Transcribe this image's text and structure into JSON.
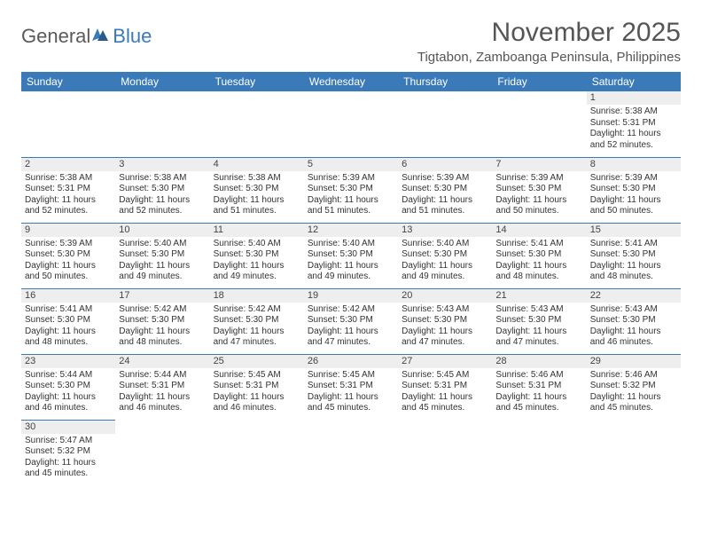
{
  "logo": {
    "text_general": "General",
    "text_blue": "Blue"
  },
  "title": "November 2025",
  "location": "Tigtabon, Zamboanga Peninsula, Philippines",
  "colors": {
    "header_bg": "#3a7ab8",
    "header_text": "#ffffff",
    "daynum_bg": "#eeeeee",
    "cell_border": "#3a7ab8",
    "body_text": "#333333",
    "title_text": "#555555"
  },
  "day_headers": [
    "Sunday",
    "Monday",
    "Tuesday",
    "Wednesday",
    "Thursday",
    "Friday",
    "Saturday"
  ],
  "weeks": [
    [
      null,
      null,
      null,
      null,
      null,
      null,
      {
        "n": "1",
        "sunrise": "Sunrise: 5:38 AM",
        "sunset": "Sunset: 5:31 PM",
        "daylight1": "Daylight: 11 hours",
        "daylight2": "and 52 minutes."
      }
    ],
    [
      {
        "n": "2",
        "sunrise": "Sunrise: 5:38 AM",
        "sunset": "Sunset: 5:31 PM",
        "daylight1": "Daylight: 11 hours",
        "daylight2": "and 52 minutes."
      },
      {
        "n": "3",
        "sunrise": "Sunrise: 5:38 AM",
        "sunset": "Sunset: 5:30 PM",
        "daylight1": "Daylight: 11 hours",
        "daylight2": "and 52 minutes."
      },
      {
        "n": "4",
        "sunrise": "Sunrise: 5:38 AM",
        "sunset": "Sunset: 5:30 PM",
        "daylight1": "Daylight: 11 hours",
        "daylight2": "and 51 minutes."
      },
      {
        "n": "5",
        "sunrise": "Sunrise: 5:39 AM",
        "sunset": "Sunset: 5:30 PM",
        "daylight1": "Daylight: 11 hours",
        "daylight2": "and 51 minutes."
      },
      {
        "n": "6",
        "sunrise": "Sunrise: 5:39 AM",
        "sunset": "Sunset: 5:30 PM",
        "daylight1": "Daylight: 11 hours",
        "daylight2": "and 51 minutes."
      },
      {
        "n": "7",
        "sunrise": "Sunrise: 5:39 AM",
        "sunset": "Sunset: 5:30 PM",
        "daylight1": "Daylight: 11 hours",
        "daylight2": "and 50 minutes."
      },
      {
        "n": "8",
        "sunrise": "Sunrise: 5:39 AM",
        "sunset": "Sunset: 5:30 PM",
        "daylight1": "Daylight: 11 hours",
        "daylight2": "and 50 minutes."
      }
    ],
    [
      {
        "n": "9",
        "sunrise": "Sunrise: 5:39 AM",
        "sunset": "Sunset: 5:30 PM",
        "daylight1": "Daylight: 11 hours",
        "daylight2": "and 50 minutes."
      },
      {
        "n": "10",
        "sunrise": "Sunrise: 5:40 AM",
        "sunset": "Sunset: 5:30 PM",
        "daylight1": "Daylight: 11 hours",
        "daylight2": "and 49 minutes."
      },
      {
        "n": "11",
        "sunrise": "Sunrise: 5:40 AM",
        "sunset": "Sunset: 5:30 PM",
        "daylight1": "Daylight: 11 hours",
        "daylight2": "and 49 minutes."
      },
      {
        "n": "12",
        "sunrise": "Sunrise: 5:40 AM",
        "sunset": "Sunset: 5:30 PM",
        "daylight1": "Daylight: 11 hours",
        "daylight2": "and 49 minutes."
      },
      {
        "n": "13",
        "sunrise": "Sunrise: 5:40 AM",
        "sunset": "Sunset: 5:30 PM",
        "daylight1": "Daylight: 11 hours",
        "daylight2": "and 49 minutes."
      },
      {
        "n": "14",
        "sunrise": "Sunrise: 5:41 AM",
        "sunset": "Sunset: 5:30 PM",
        "daylight1": "Daylight: 11 hours",
        "daylight2": "and 48 minutes."
      },
      {
        "n": "15",
        "sunrise": "Sunrise: 5:41 AM",
        "sunset": "Sunset: 5:30 PM",
        "daylight1": "Daylight: 11 hours",
        "daylight2": "and 48 minutes."
      }
    ],
    [
      {
        "n": "16",
        "sunrise": "Sunrise: 5:41 AM",
        "sunset": "Sunset: 5:30 PM",
        "daylight1": "Daylight: 11 hours",
        "daylight2": "and 48 minutes."
      },
      {
        "n": "17",
        "sunrise": "Sunrise: 5:42 AM",
        "sunset": "Sunset: 5:30 PM",
        "daylight1": "Daylight: 11 hours",
        "daylight2": "and 48 minutes."
      },
      {
        "n": "18",
        "sunrise": "Sunrise: 5:42 AM",
        "sunset": "Sunset: 5:30 PM",
        "daylight1": "Daylight: 11 hours",
        "daylight2": "and 47 minutes."
      },
      {
        "n": "19",
        "sunrise": "Sunrise: 5:42 AM",
        "sunset": "Sunset: 5:30 PM",
        "daylight1": "Daylight: 11 hours",
        "daylight2": "and 47 minutes."
      },
      {
        "n": "20",
        "sunrise": "Sunrise: 5:43 AM",
        "sunset": "Sunset: 5:30 PM",
        "daylight1": "Daylight: 11 hours",
        "daylight2": "and 47 minutes."
      },
      {
        "n": "21",
        "sunrise": "Sunrise: 5:43 AM",
        "sunset": "Sunset: 5:30 PM",
        "daylight1": "Daylight: 11 hours",
        "daylight2": "and 47 minutes."
      },
      {
        "n": "22",
        "sunrise": "Sunrise: 5:43 AM",
        "sunset": "Sunset: 5:30 PM",
        "daylight1": "Daylight: 11 hours",
        "daylight2": "and 46 minutes."
      }
    ],
    [
      {
        "n": "23",
        "sunrise": "Sunrise: 5:44 AM",
        "sunset": "Sunset: 5:30 PM",
        "daylight1": "Daylight: 11 hours",
        "daylight2": "and 46 minutes."
      },
      {
        "n": "24",
        "sunrise": "Sunrise: 5:44 AM",
        "sunset": "Sunset: 5:31 PM",
        "daylight1": "Daylight: 11 hours",
        "daylight2": "and 46 minutes."
      },
      {
        "n": "25",
        "sunrise": "Sunrise: 5:45 AM",
        "sunset": "Sunset: 5:31 PM",
        "daylight1": "Daylight: 11 hours",
        "daylight2": "and 46 minutes."
      },
      {
        "n": "26",
        "sunrise": "Sunrise: 5:45 AM",
        "sunset": "Sunset: 5:31 PM",
        "daylight1": "Daylight: 11 hours",
        "daylight2": "and 45 minutes."
      },
      {
        "n": "27",
        "sunrise": "Sunrise: 5:45 AM",
        "sunset": "Sunset: 5:31 PM",
        "daylight1": "Daylight: 11 hours",
        "daylight2": "and 45 minutes."
      },
      {
        "n": "28",
        "sunrise": "Sunrise: 5:46 AM",
        "sunset": "Sunset: 5:31 PM",
        "daylight1": "Daylight: 11 hours",
        "daylight2": "and 45 minutes."
      },
      {
        "n": "29",
        "sunrise": "Sunrise: 5:46 AM",
        "sunset": "Sunset: 5:32 PM",
        "daylight1": "Daylight: 11 hours",
        "daylight2": "and 45 minutes."
      }
    ],
    [
      {
        "n": "30",
        "sunrise": "Sunrise: 5:47 AM",
        "sunset": "Sunset: 5:32 PM",
        "daylight1": "Daylight: 11 hours",
        "daylight2": "and 45 minutes."
      },
      null,
      null,
      null,
      null,
      null,
      null
    ]
  ]
}
